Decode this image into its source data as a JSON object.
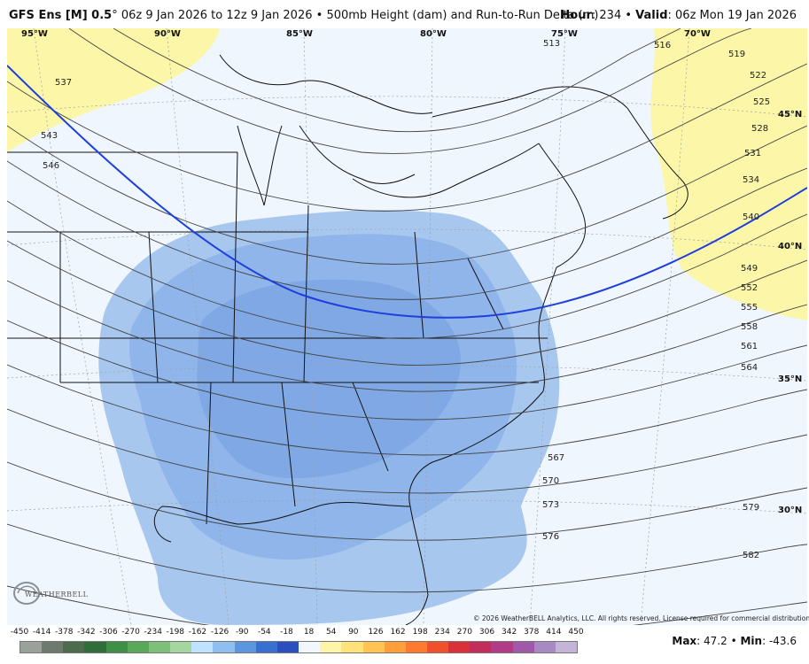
{
  "title": {
    "model": "GFS Ens [M] 0.5",
    "degree": "°",
    "run_range": "06z 9 Jan 2026 to 12z 9 Jan 2026",
    "bullet": "•",
    "field": "500mb Height (dam) and Run-to-Run Delta (m)",
    "hour_label": "Hour",
    "hour_value": ": 234",
    "valid_label": "Valid",
    "valid_value": ": 06z Mon 19 Jan 2026"
  },
  "longitude_labels": [
    "95°W",
    "90°W",
    "85°W",
    "80°W",
    "75°W",
    "70°W"
  ],
  "latitude_labels": [
    "45°N",
    "40°N",
    "35°N",
    "30°N"
  ],
  "contour_labels": [
    "537",
    "543",
    "546",
    "513",
    "516",
    "519",
    "522",
    "525",
    "528",
    "531",
    "534",
    "540",
    "549",
    "552",
    "555",
    "558",
    "561",
    "564",
    "567",
    "570",
    "573",
    "576",
    "579",
    "582"
  ],
  "copyright": "© 2026 WeatherBELL Analytics, LLC. All rights reserved. License required for commercial distribution.",
  "logo_text": "WEATHERBELL",
  "colorbar": {
    "ticks": [
      "-450",
      "-414",
      "-378",
      "-342",
      "-306",
      "-270",
      "-234",
      "-198",
      "-162",
      "-126",
      "-90",
      "-54",
      "-18",
      "18",
      "54",
      "90",
      "126",
      "162",
      "198",
      "234",
      "270",
      "306",
      "342",
      "378",
      "414",
      "450"
    ],
    "colors": [
      "#9aa09a",
      "#6f7a6f",
      "#4d6b4d",
      "#2f6e3a",
      "#3f8f46",
      "#5aa85a",
      "#7cc07a",
      "#a6d6a0",
      "#bfe3ff",
      "#8fbef0",
      "#5d96e0",
      "#3a6fd2",
      "#2a4fbf",
      "#f2f7fe",
      "#fdf6a8",
      "#ffe27a",
      "#ffc452",
      "#ff9f3a",
      "#ff7a2f",
      "#f0502a",
      "#d9303a",
      "#c22d5c",
      "#b23a86",
      "#9e5aa8",
      "#a88ac2",
      "#c4b4d8"
    ],
    "max_label": "Max",
    "max_value": ": 47.2",
    "sep": "•",
    "min_label": "Min",
    "min_value": ": -43.6"
  }
}
